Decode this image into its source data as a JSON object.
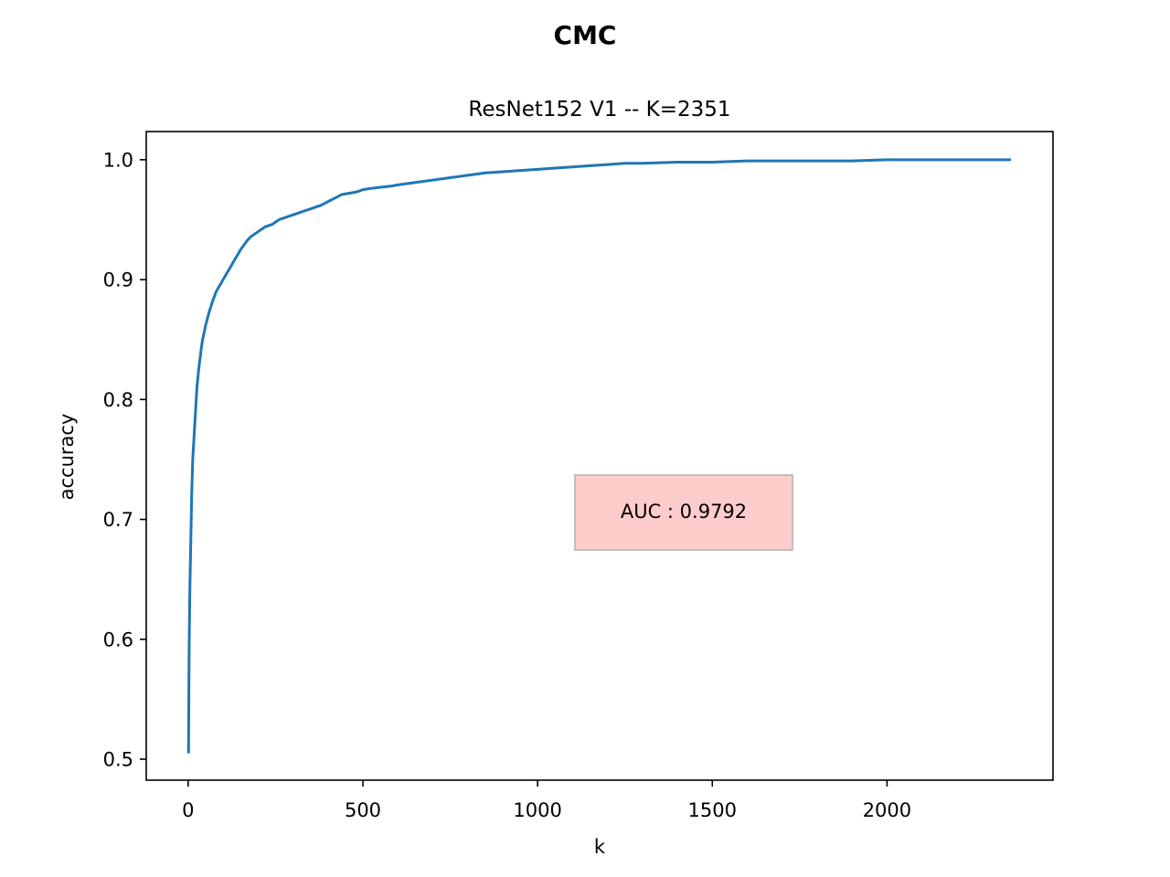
{
  "chart_data": {
    "type": "line",
    "suptitle": "CMC",
    "title": "ResNet152 V1 -- K=2351",
    "xlabel": "k",
    "ylabel": "accuracy",
    "xlim": [
      -120,
      2475
    ],
    "ylim": [
      0.4825,
      1.0235
    ],
    "xticks": [
      0,
      500,
      1000,
      1500,
      2000
    ],
    "xtick_labels": [
      "0",
      "500",
      "1000",
      "1500",
      "2000"
    ],
    "yticks": [
      0.5,
      0.6,
      0.7,
      0.8,
      0.9,
      1.0
    ],
    "ytick_labels": [
      "0.5",
      "0.6",
      "0.7",
      "0.8",
      "0.9",
      "1.0"
    ],
    "grid": false,
    "annotation": {
      "text": "AUC : 0.9792",
      "box_color": "#ffcccc",
      "edge_color": "#bfbfbf"
    },
    "series": [
      {
        "color": "#1f77b4",
        "x": [
          1,
          2,
          3,
          5,
          8,
          10,
          13,
          17,
          20,
          25,
          30,
          40,
          50,
          60,
          70,
          80,
          90,
          100,
          110,
          120,
          130,
          140,
          150,
          160,
          170,
          180,
          200,
          220,
          240,
          260,
          280,
          300,
          320,
          350,
          380,
          400,
          420,
          440,
          460,
          480,
          500,
          520,
          550,
          580,
          600,
          650,
          700,
          750,
          800,
          850,
          900,
          950,
          1000,
          1050,
          1100,
          1150,
          1200,
          1250,
          1300,
          1400,
          1500,
          1600,
          1700,
          1800,
          1900,
          2000,
          2100,
          2200,
          2300,
          2351
        ],
        "y": [
          0.506,
          0.56,
          0.6,
          0.645,
          0.69,
          0.72,
          0.75,
          0.77,
          0.785,
          0.81,
          0.825,
          0.848,
          0.862,
          0.873,
          0.882,
          0.89,
          0.895,
          0.9,
          0.905,
          0.91,
          0.915,
          0.92,
          0.925,
          0.929,
          0.933,
          0.936,
          0.94,
          0.944,
          0.946,
          0.95,
          0.952,
          0.954,
          0.956,
          0.959,
          0.962,
          0.965,
          0.968,
          0.971,
          0.972,
          0.973,
          0.975,
          0.976,
          0.977,
          0.978,
          0.979,
          0.981,
          0.983,
          0.985,
          0.987,
          0.989,
          0.99,
          0.991,
          0.992,
          0.993,
          0.994,
          0.995,
          0.996,
          0.997,
          0.997,
          0.998,
          0.998,
          0.999,
          0.999,
          0.999,
          0.999,
          1.0,
          1.0,
          1.0,
          1.0,
          1.0
        ]
      }
    ]
  }
}
